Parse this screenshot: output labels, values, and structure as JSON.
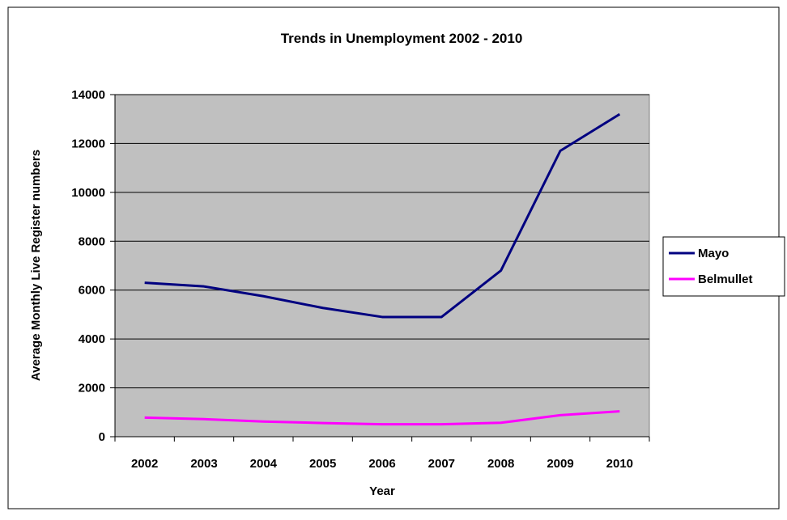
{
  "chart_data": {
    "type": "line",
    "title": "Trends in Unemployment 2002 - 2010",
    "xlabel": "Year",
    "ylabel": "Average Monthly Live Register numbers",
    "categories": [
      "2002",
      "2003",
      "2004",
      "2005",
      "2006",
      "2007",
      "2008",
      "2009",
      "2010"
    ],
    "ylim": [
      0,
      14000
    ],
    "yticks": [
      0,
      2000,
      4000,
      6000,
      8000,
      10000,
      12000,
      14000
    ],
    "grid": true,
    "legend_position": "right",
    "plot_background": "#c0c0c0",
    "series": [
      {
        "name": "Mayo",
        "color": "#000080",
        "values": [
          6300,
          6150,
          5750,
          5270,
          4900,
          4900,
          6800,
          11700,
          13200
        ]
      },
      {
        "name": "Belmullet",
        "color": "#ff00ff",
        "values": [
          780,
          720,
          620,
          560,
          510,
          510,
          570,
          880,
          1040
        ]
      }
    ]
  }
}
